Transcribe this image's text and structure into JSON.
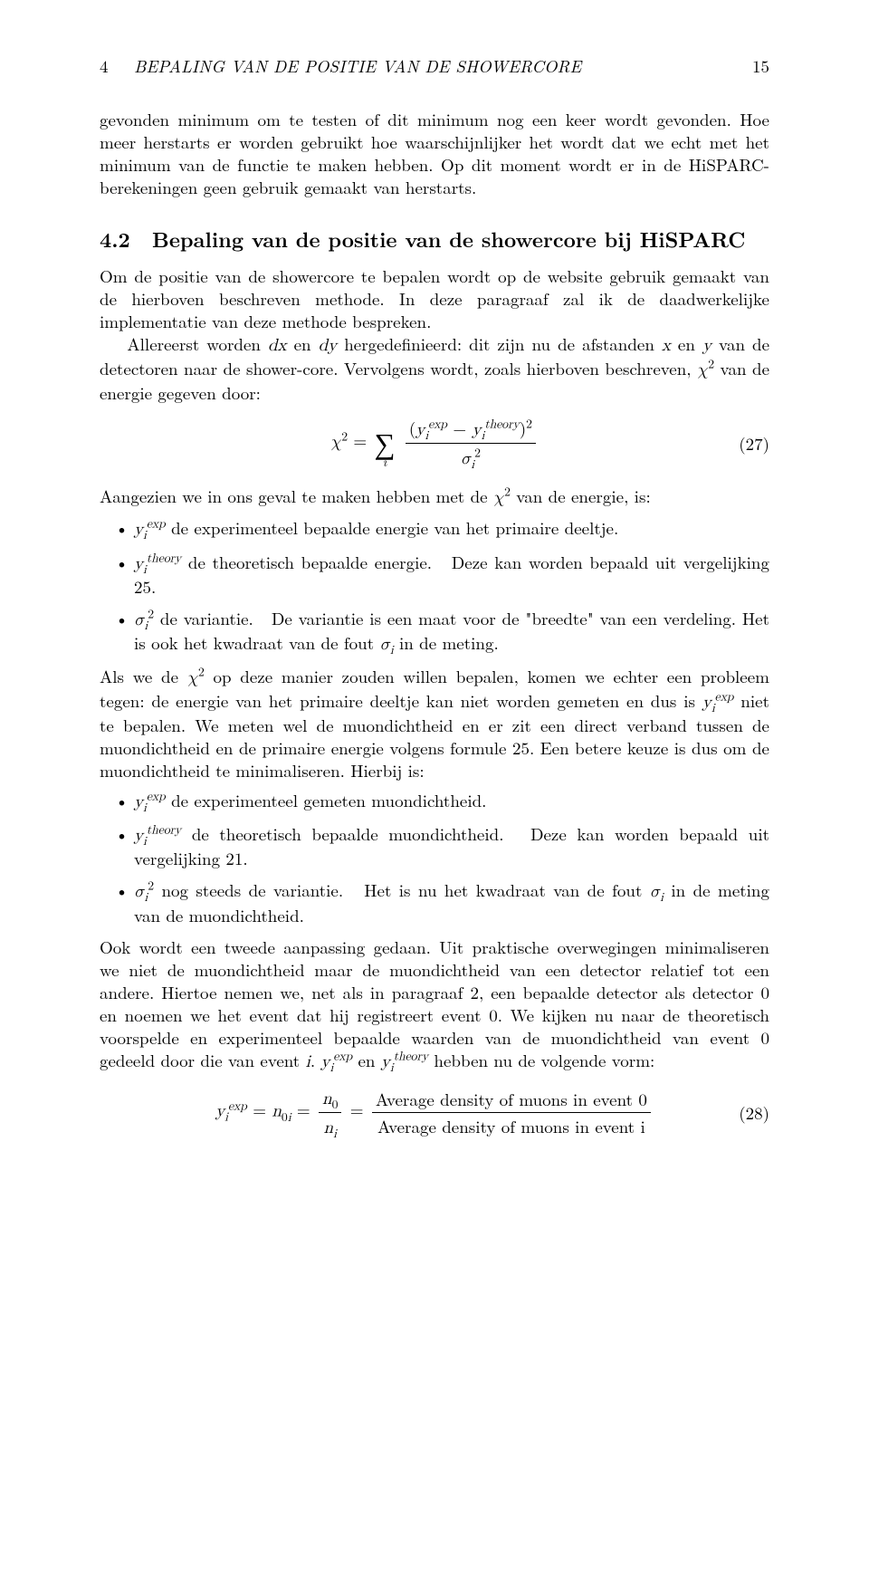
{
  "header": {
    "section_num": "4",
    "section_title": "BEPALING VAN DE POSITIE VAN DE SHOWERCORE",
    "page_number": "15"
  },
  "para1": "gevonden minimum om te testen of dit minimum nog een keer wordt gevonden. Hoe meer herstarts er worden gebruikt hoe waarschijnlijker het wordt dat we echt met het minimum van de functie te maken hebben. Op dit moment wordt er in de HiSPARC-berekeningen geen gebruik gemaakt van herstarts.",
  "heading": {
    "number": "4.2",
    "title": "Bepaling van de positie van de showercore bij HiSPARC"
  },
  "para2a": "Om de positie van de showercore te bepalen wordt op de website gebruik gemaakt van de hierboven beschreven methode. In deze paragraaf zal ik de daadwerkelijke implementatie van deze methode bespreken.",
  "para2b_pre": "Allereerst worden ",
  "para2b_mid1": " en ",
  "para2b_mid2": " hergedefinieerd: dit zijn nu de afstanden ",
  "para2b_mid3": " en ",
  "para2b_mid4": " van de detectoren naar de shower-core. Vervolgens wordt, zoals hierboven beschreven, ",
  "para2b_post": " van de energie gegeven door:",
  "eq27_num": "(27)",
  "para3_pre": "Aangezien we in ons geval te maken hebben met de ",
  "para3_post": " van de energie, is:",
  "bullets1": {
    "a": " de experimenteel bepaalde energie van het primaire deeltje.",
    "b_pre": " de theoretisch bepaalde energie.",
    "b_post": "Deze kan worden bepaald uit vergelijking 25.",
    "c_pre": " de variantie.",
    "c_mid": "De variantie is een maat voor de \"breedte\" van een verdeling. Het is ook het kwadraat van de fout ",
    "c_post": " in de meting."
  },
  "para4_pre": "Als we de ",
  "para4_mid1": " op deze manier zouden willen bepalen, komen we echter een probleem tegen: de energie van het primaire deeltje kan niet worden gemeten en dus is ",
  "para4_post": " niet te bepalen. We meten wel de muondichtheid en er zit een direct verband tussen de muondichtheid en de primaire energie volgens formule 25. Een betere keuze is dus om de muondichtheid te minimaliseren. Hierbij is:",
  "bullets2": {
    "a": " de experimenteel gemeten muondichtheid.",
    "b_pre": " de theoretisch bepaalde muondichtheid.",
    "b_post": "Deze kan worden bepaald uit vergelijking 21.",
    "c_pre": " nog steeds de variantie.",
    "c_mid": "Het is nu het kwadraat van de fout ",
    "c_post": " in de meting van de muondichtheid."
  },
  "para5_pre": "Ook wordt een tweede aanpassing gedaan. Uit praktische overwegingen minimaliseren we niet de muondichtheid maar de muondichtheid van een detector relatief tot een andere. Hiertoe nemen we, net als in paragraaf 2, een bepaalde detector als detector 0 en noemen we het event dat hij registreert event 0. We kijken nu naar de theoretisch voorspelde en experimenteel bepaalde waarden van de muondichtheid van event 0 gedeeld door die van event ",
  "para5_mid": ". ",
  "para5_mid2": " en ",
  "para5_post": " hebben nu de volgende vorm:",
  "eq28_num": "(28)",
  "eq28": {
    "text_num": "Average density of muons in event 0",
    "text_den": "Average density of muons in event i"
  }
}
